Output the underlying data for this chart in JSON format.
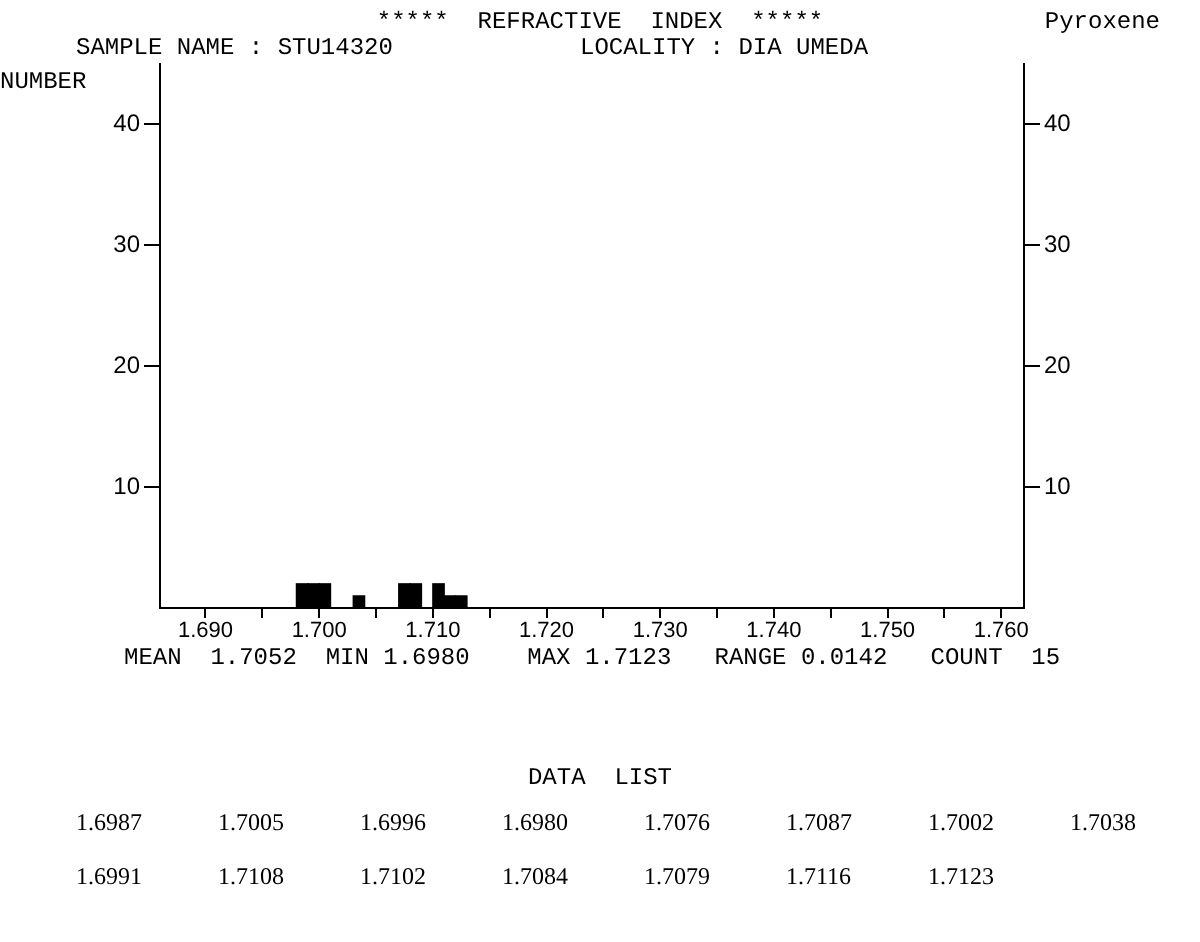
{
  "chart_data": {
    "type": "histogram",
    "title": "*****  REFRACTIVE  INDEX  *****",
    "ylabel": "NUMBER",
    "bins": [
      1.698,
      1.699,
      1.7,
      1.701,
      1.702,
      1.703,
      1.704,
      1.705,
      1.706,
      1.707,
      1.708,
      1.709,
      1.71,
      1.711,
      1.712,
      1.713
    ],
    "values": [
      2,
      2,
      2,
      0,
      0,
      1,
      0,
      0,
      0,
      2,
      2,
      0,
      2,
      1,
      1
    ],
    "color": "#000000",
    "xlim": [
      1.686,
      1.762
    ],
    "xticks": [
      {
        "value": 1.69,
        "label": "1.690"
      },
      {
        "value": 1.695,
        "label": null
      },
      {
        "value": 1.7,
        "label": "1.700"
      },
      {
        "value": 1.705,
        "label": null
      },
      {
        "value": 1.71,
        "label": "1.710"
      },
      {
        "value": 1.715,
        "label": null
      },
      {
        "value": 1.72,
        "label": "1.720"
      },
      {
        "value": 1.725,
        "label": null
      },
      {
        "value": 1.73,
        "label": "1.730"
      },
      {
        "value": 1.735,
        "label": null
      },
      {
        "value": 1.74,
        "label": "1.740"
      },
      {
        "value": 1.745,
        "label": null
      },
      {
        "value": 1.75,
        "label": "1.750"
      },
      {
        "value": 1.755,
        "label": null
      },
      {
        "value": 1.76,
        "label": "1.760"
      }
    ],
    "ylim": [
      0,
      45
    ],
    "yticks": [
      10,
      20,
      30,
      40
    ],
    "y2lim": [
      0,
      45
    ],
    "y2ticks": [
      10,
      20,
      30,
      40
    ],
    "annotations": [
      "SAMPLE NAME : STU14320",
      "LOCALITY : DIA UMEDA",
      "Pyroxene",
      "MEAN  1.7052  MIN 1.6980    MAX 1.7123   RANGE 0.0142   COUNT  15",
      "DATA  LIST",
      "1.6987 1.7005 1.6996 1.6980 1.7076 1.7087 1.7002 1.7038",
      "1.6991 1.7108 1.7102 1.7084 1.7079 1.7116 1.7123"
    ]
  }
}
